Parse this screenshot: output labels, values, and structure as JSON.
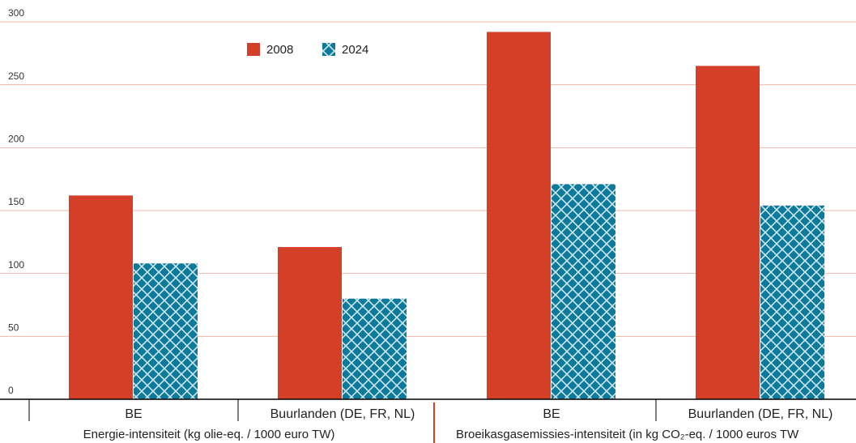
{
  "chart_data": {
    "type": "bar",
    "categories": [
      "BE",
      "Buurlanden (DE, FR, NL)",
      "BE",
      "Buurlanden (DE, FR, NL)"
    ],
    "groups": [
      "Energie-intensiteit (kg olie-eq. / 1000 euro TW)",
      "Broeikasgasemissies-intensiteit (in kg CO₂-eq. / 1000 euros TW"
    ],
    "series": [
      {
        "name": "2008",
        "color": "#d44027",
        "values": [
          162,
          121,
          292,
          265
        ]
      },
      {
        "name": "2024",
        "color": "#0b7a9c",
        "values": [
          108,
          80,
          171,
          154
        ]
      }
    ],
    "ylim": [
      0,
      300
    ],
    "yticks": [
      0,
      50,
      100,
      150,
      200,
      250,
      300
    ],
    "grid": true
  }
}
